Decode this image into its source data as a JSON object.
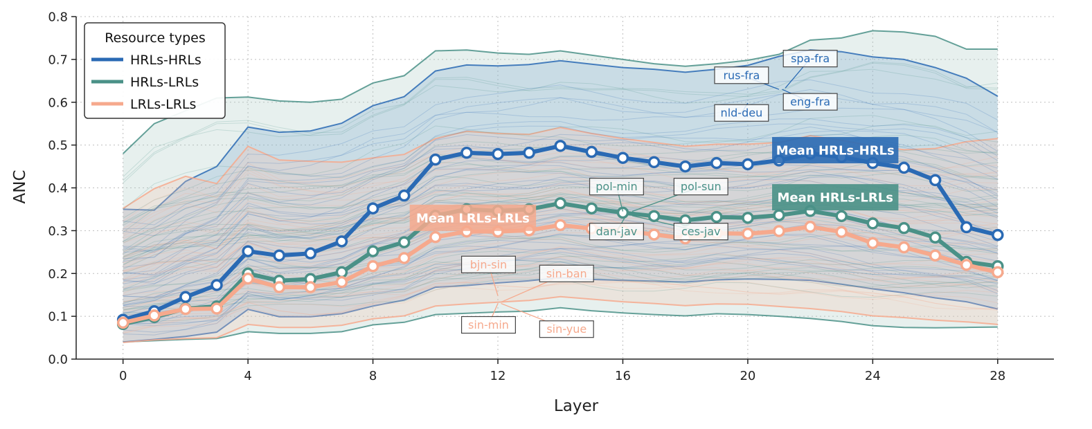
{
  "chart_data": {
    "type": "line",
    "xlabel": "Layer",
    "ylabel": "ANC",
    "xlim": [
      -1.5,
      29.8
    ],
    "ylim": [
      0.0,
      0.8
    ],
    "xticks": [
      0,
      4,
      8,
      12,
      16,
      20,
      24,
      28
    ],
    "yticks": [
      0.0,
      0.1,
      0.2,
      0.3,
      0.4,
      0.5,
      0.6,
      0.7,
      0.8
    ],
    "grid": "dotted",
    "legend": {
      "title": "Resource types",
      "position": "top-left",
      "entries": [
        "HRLs-HRLs",
        "HRLs-LRLs",
        "LRLs-LRLs"
      ]
    },
    "colors": {
      "hrl_hrl": "#2a6ab4",
      "hrl_lrl": "#4a9187",
      "lrl_lrl": "#f6a98d",
      "band_hrl_hrl": "#7fa8cf",
      "band_hrl_lrl": "#a9cac1",
      "band_lrl_lrl": "#f3c7b4",
      "axis": "#222222",
      "grid": "#bdbdbd"
    },
    "x": [
      0,
      1,
      2,
      3,
      4,
      5,
      6,
      7,
      8,
      9,
      10,
      11,
      12,
      13,
      14,
      15,
      16,
      17,
      18,
      19,
      20,
      21,
      22,
      23,
      24,
      25,
      26,
      27,
      28
    ],
    "series": [
      {
        "name": "Mean HRLs-HRLs",
        "key": "hrl_hrl",
        "values": [
          0.092,
          0.112,
          0.145,
          0.173,
          0.252,
          0.242,
          0.247,
          0.275,
          0.352,
          0.382,
          0.466,
          0.482,
          0.479,
          0.482,
          0.498,
          0.484,
          0.47,
          0.46,
          0.45,
          0.458,
          0.455,
          0.464,
          0.48,
          0.472,
          0.458,
          0.447,
          0.418,
          0.308,
          0.29
        ]
      },
      {
        "name": "Mean HRLs-LRLs",
        "key": "hrl_lrl",
        "values": [
          0.082,
          0.098,
          0.118,
          0.123,
          0.2,
          0.183,
          0.187,
          0.203,
          0.252,
          0.273,
          0.335,
          0.35,
          0.346,
          0.35,
          0.364,
          0.352,
          0.342,
          0.334,
          0.324,
          0.332,
          0.33,
          0.336,
          0.346,
          0.334,
          0.317,
          0.306,
          0.284,
          0.227,
          0.217
        ]
      },
      {
        "name": "Mean LRLs-LRLs",
        "key": "lrl_lrl",
        "values": [
          0.085,
          0.102,
          0.117,
          0.118,
          0.188,
          0.168,
          0.168,
          0.18,
          0.217,
          0.236,
          0.285,
          0.298,
          0.298,
          0.301,
          0.313,
          0.305,
          0.3,
          0.291,
          0.282,
          0.294,
          0.293,
          0.299,
          0.309,
          0.297,
          0.271,
          0.261,
          0.242,
          0.22,
          0.203
        ]
      }
    ],
    "bands": [
      {
        "key": "hrl_lrl",
        "upper": [
          0.48,
          0.55,
          0.58,
          0.61,
          0.612,
          0.603,
          0.6,
          0.607,
          0.645,
          0.662,
          0.72,
          0.722,
          0.715,
          0.712,
          0.72,
          0.71,
          0.7,
          0.69,
          0.684,
          0.69,
          0.698,
          0.712,
          0.745,
          0.75,
          0.767,
          0.764,
          0.754,
          0.724,
          0.724
        ],
        "lower": [
          0.04,
          0.043,
          0.046,
          0.048,
          0.064,
          0.06,
          0.06,
          0.064,
          0.08,
          0.086,
          0.104,
          0.107,
          0.11,
          0.112,
          0.12,
          0.113,
          0.108,
          0.104,
          0.101,
          0.106,
          0.104,
          0.1,
          0.095,
          0.088,
          0.078,
          0.074,
          0.073,
          0.074,
          0.075
        ]
      },
      {
        "key": "hrl_hrl",
        "upper": [
          0.35,
          0.348,
          0.415,
          0.45,
          0.542,
          0.53,
          0.533,
          0.551,
          0.592,
          0.613,
          0.673,
          0.687,
          0.685,
          0.688,
          0.697,
          0.689,
          0.681,
          0.677,
          0.67,
          0.677,
          0.686,
          0.707,
          0.722,
          0.718,
          0.706,
          0.7,
          0.681,
          0.656,
          0.614
        ],
        "lower": [
          0.04,
          0.046,
          0.053,
          0.063,
          0.116,
          0.099,
          0.099,
          0.106,
          0.124,
          0.138,
          0.168,
          0.172,
          0.178,
          0.183,
          0.19,
          0.186,
          0.184,
          0.182,
          0.18,
          0.185,
          0.187,
          0.186,
          0.184,
          0.175,
          0.164,
          0.155,
          0.143,
          0.134,
          0.117
        ]
      },
      {
        "key": "lrl_lrl",
        "upper": [
          0.352,
          0.398,
          0.427,
          0.41,
          0.497,
          0.465,
          0.462,
          0.46,
          0.47,
          0.478,
          0.515,
          0.532,
          0.527,
          0.525,
          0.541,
          0.527,
          0.515,
          0.506,
          0.497,
          0.502,
          0.502,
          0.506,
          0.522,
          0.511,
          0.498,
          0.489,
          0.492,
          0.508,
          0.515
        ],
        "lower": [
          0.039,
          0.045,
          0.048,
          0.05,
          0.081,
          0.074,
          0.074,
          0.079,
          0.094,
          0.101,
          0.124,
          0.129,
          0.133,
          0.137,
          0.146,
          0.14,
          0.134,
          0.13,
          0.125,
          0.129,
          0.128,
          0.123,
          0.118,
          0.111,
          0.101,
          0.097,
          0.091,
          0.087,
          0.081
        ]
      }
    ],
    "mean_labels": [
      {
        "text": "Mean HRLs-HRLs",
        "key": "hrl_hrl",
        "x": 22.8,
        "y": 0.488
      },
      {
        "text": "Mean HRLs-LRLs",
        "key": "hrl_lrl",
        "x": 22.8,
        "y": 0.378
      },
      {
        "text": "Mean LRLs-LRLs",
        "key": "lrl_lrl",
        "x": 11.2,
        "y": 0.33
      }
    ],
    "annotations": [
      {
        "text": "spa-fra",
        "key": "hrl_hrl",
        "x": 22.0,
        "y": 0.702,
        "tx": 21.2,
        "ty": 0.633
      },
      {
        "text": "rus-fra",
        "key": "hrl_hrl",
        "x": 19.8,
        "y": 0.663,
        "tx": 21.0,
        "ty": 0.63
      },
      {
        "text": "eng-fra",
        "key": "hrl_hrl",
        "x": 22.0,
        "y": 0.601,
        "tx": 21.1,
        "ty": 0.63
      },
      {
        "text": "nld-deu",
        "key": "hrl_hrl",
        "x": 19.8,
        "y": 0.575,
        "tx": 20.0,
        "ty": 0.598
      },
      {
        "text": "pol-min",
        "key": "hrl_lrl",
        "x": 15.8,
        "y": 0.403,
        "tx": 16.0,
        "ty": 0.345
      },
      {
        "text": "pol-sun",
        "key": "hrl_lrl",
        "x": 18.5,
        "y": 0.403,
        "tx": 16.3,
        "ty": 0.345
      },
      {
        "text": "dan-jav",
        "key": "hrl_lrl",
        "x": 15.8,
        "y": 0.298,
        "tx": 16.1,
        "ty": 0.335
      },
      {
        "text": "ces-jav",
        "key": "hrl_lrl",
        "x": 18.5,
        "y": 0.298,
        "tx": 16.3,
        "ty": 0.335
      },
      {
        "text": "bjn-sin",
        "key": "lrl_lrl",
        "x": 11.7,
        "y": 0.221,
        "tx": 12.0,
        "ty": 0.148
      },
      {
        "text": "sin-ban",
        "key": "lrl_lrl",
        "x": 14.2,
        "y": 0.2,
        "tx": 12.1,
        "ty": 0.133
      },
      {
        "text": "sin-min",
        "key": "lrl_lrl",
        "x": 11.7,
        "y": 0.08,
        "tx": 12.0,
        "ty": 0.13
      },
      {
        "text": "sin-yue",
        "key": "lrl_lrl",
        "x": 14.2,
        "y": 0.07,
        "tx": 12.1,
        "ty": 0.13
      }
    ]
  }
}
